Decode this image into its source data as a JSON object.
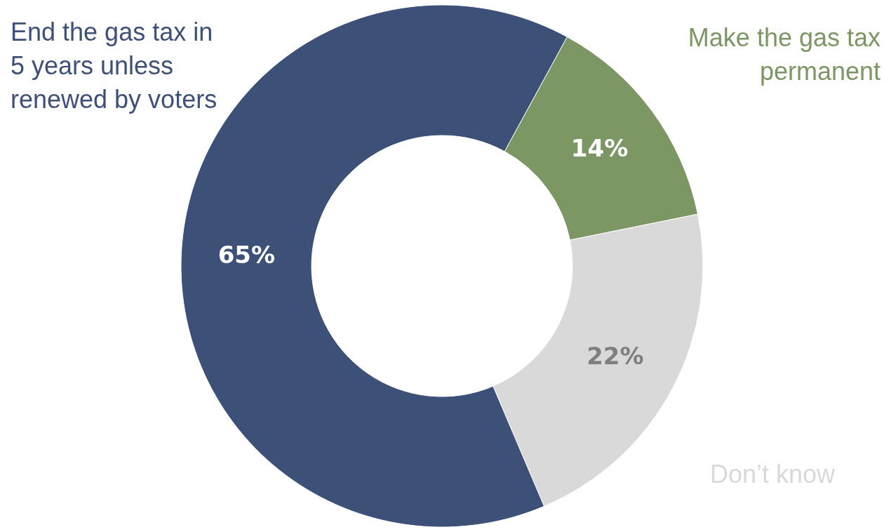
{
  "chart_data": {
    "type": "donut",
    "categories": [
      "Make the gas tax permanent",
      "Don’t know",
      "End the gas tax in 5 years unless renewed by voters"
    ],
    "values": [
      14,
      22,
      65
    ],
    "colors": [
      "#7c9763",
      "#d9d9d9",
      "#3d5078"
    ],
    "value_labels": [
      "14%",
      "22%",
      "65%"
    ]
  }
}
